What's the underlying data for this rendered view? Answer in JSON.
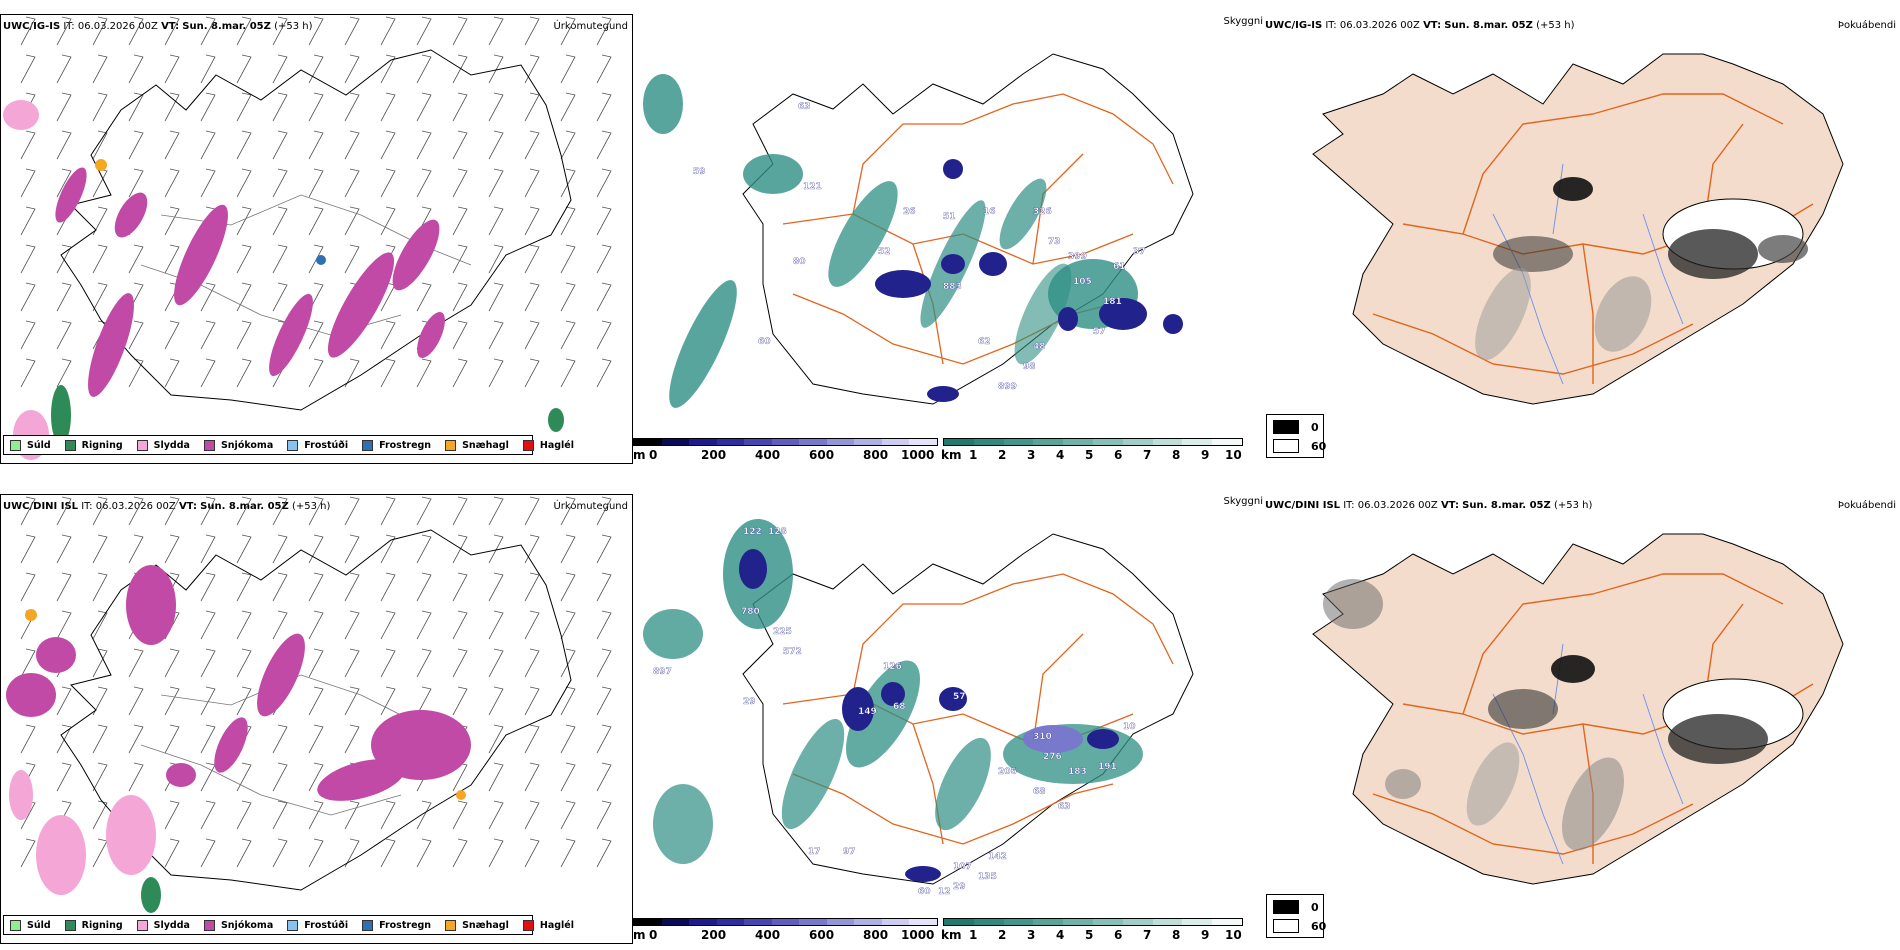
{
  "rows": [
    {
      "model": "UWC/IG-IS",
      "it_label": "IT:",
      "it_value": "06.03.2026 00Z",
      "vt_label": "VT:",
      "vt_value": "Sun. 8.mar. 05Z",
      "lead": "(+53 h)"
    },
    {
      "model": "UWC/DINI ISL",
      "it_label": "IT:",
      "it_value": "06.03.2026 00Z",
      "vt_label": "VT:",
      "vt_value": "Sun. 8.mar. 05Z",
      "lead": "(+53 h)"
    }
  ],
  "titles": {
    "precip_type": "Úrkomutegund",
    "visibility": "Skyggni",
    "fog": "Þokuábendi"
  },
  "legend": [
    {
      "label": "Súld",
      "color": "#90ee90"
    },
    {
      "label": "Rigning",
      "color": "#2e8b57"
    },
    {
      "label": "Slydda",
      "color": "#f4a6d7"
    },
    {
      "label": "Snjókoma",
      "color": "#c04aa6"
    },
    {
      "label": "Frostúði",
      "color": "#87c3f0"
    },
    {
      "label": "Frostregn",
      "color": "#2f6fb5"
    },
    {
      "label": "Snæhagl",
      "color": "#f5a623"
    },
    {
      "label": "Haglél",
      "color": "#e01010"
    }
  ],
  "cbar_height": {
    "unit": "m",
    "ticks": [
      "0",
      "200",
      "400",
      "600",
      "800",
      "1000"
    ],
    "colors": [
      "#000000",
      "#0a0a5a",
      "#1c1c8c",
      "#2e2ea0",
      "#4646b0",
      "#5e5ec0",
      "#7878cc",
      "#9494d8",
      "#b0b0e4",
      "#cccdf0",
      "#e4e4f8"
    ]
  },
  "cbar_km": {
    "unit": "km",
    "ticks": [
      "1",
      "2",
      "3",
      "4",
      "5",
      "6",
      "7",
      "8",
      "9",
      "10"
    ],
    "colors": [
      "#1f7a70",
      "#2f8a80",
      "#3f978d",
      "#55a59b",
      "#6db3aa",
      "#86c1b9",
      "#a0cfc8",
      "#bcdfd9",
      "#d8eeea",
      "#f2f9f8"
    ]
  },
  "fog_legend": {
    "items": [
      {
        "label": "0",
        "color": "#000000"
      },
      {
        "label": "60",
        "color": "#ffffff"
      }
    ]
  },
  "visibility_labels_top": [
    "59",
    "63",
    "121",
    "52",
    "26",
    "51",
    "16",
    "326",
    "73",
    "61",
    "399",
    "37",
    "181",
    "105",
    "48",
    "98",
    "899",
    "62",
    "883",
    "60",
    "80",
    "57"
  ],
  "visibility_labels_bottom": [
    "122",
    "128",
    "780",
    "225",
    "572",
    "897",
    "29",
    "126",
    "149",
    "68",
    "57",
    "310",
    "10",
    "206",
    "276",
    "183",
    "191",
    "68",
    "63",
    "107",
    "142",
    "135",
    "29",
    "60",
    "12",
    "17",
    "97"
  ],
  "colors": {
    "land_fog": "#f3dccb",
    "roads": "#e2651d",
    "rivers": "#6d8ef0",
    "snow_magenta": "#c04aa6",
    "vis_teal": "#2e8f84",
    "vis_blue": "#22228c"
  }
}
